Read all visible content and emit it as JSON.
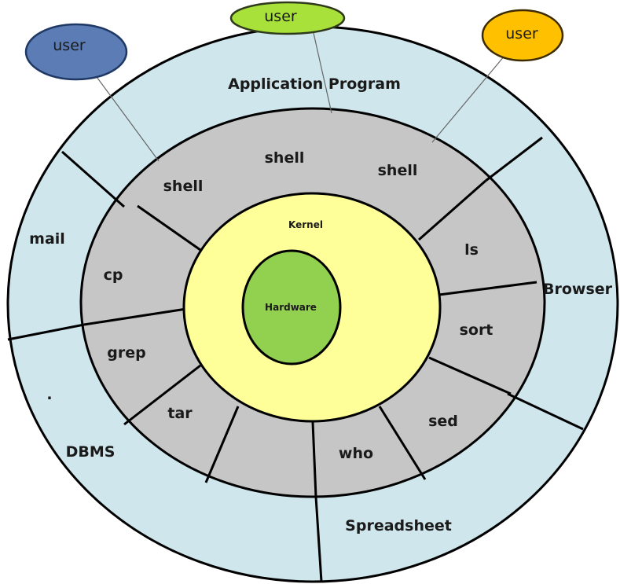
{
  "users": [
    {
      "label": "user",
      "color": "#5b7cb4"
    },
    {
      "label": "user",
      "color": "#a8e13a"
    },
    {
      "label": "user",
      "color": "#ffc000"
    }
  ],
  "outer_ring": {
    "color": "#cfe6ec",
    "labels": {
      "application": "Application Program",
      "mail": "mail",
      "browser": "Browser",
      "dbms": "DBMS",
      "spreadsheet": "Spreadsheet",
      "dot": "."
    }
  },
  "middle_ring": {
    "color": "#c6c6c6",
    "labels": {
      "shell_left": "shell",
      "shell_top": "shell",
      "shell_right": "shell",
      "ls": "ls",
      "sort": "sort",
      "sed": "sed",
      "who": "who",
      "tar": "tar",
      "grep": "grep",
      "cp": "cp"
    }
  },
  "kernel": {
    "label": "Kernel",
    "color": "#ffff99"
  },
  "hardware": {
    "label": "Hardware",
    "color": "#92d050"
  }
}
